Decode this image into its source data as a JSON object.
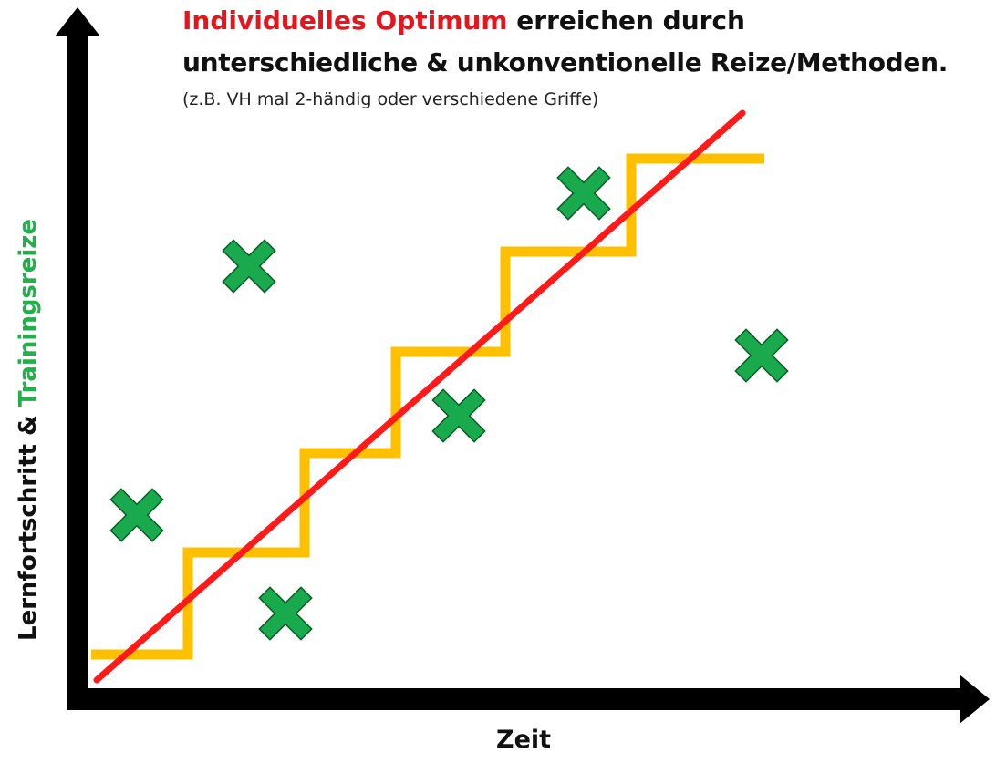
{
  "header": {
    "title_highlight": "Individuelles Optimum",
    "title_rest": " erreichen durch",
    "title_line2": "unterschiedliche & unkonventionelle Reize/Methoden.",
    "subtitle": "(z.B. VH mal 2-händig oder verschiedene Griffe)"
  },
  "axes": {
    "y_label_part1": "Lernfortschritt & ",
    "y_label_part2": "Trainingsreize",
    "x_label": "Zeit"
  },
  "colors": {
    "axis": "#000000",
    "staircase": "#ffc000",
    "trend_line": "#ff1a1a",
    "markers": "#1aaa4e",
    "highlight_red": "#e8141c",
    "highlight_green": "#22b04a"
  },
  "legend_items": {
    "staircase": "staircase",
    "trend": "trend",
    "marker_icon": "cross-icon"
  }
}
